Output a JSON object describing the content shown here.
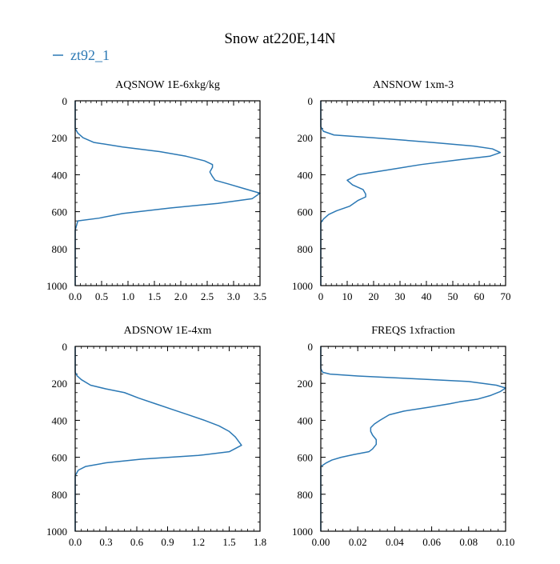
{
  "figure": {
    "title": "Snow at220E,14N",
    "legend_label": "zt92_1",
    "line_color": "#2b78b4"
  },
  "chart_data": [
    {
      "type": "line",
      "title": "AQSNOW  1E-6xkg/kg",
      "xlim": [
        0,
        3.5
      ],
      "ylim": [
        1000,
        0
      ],
      "xticks": [
        0,
        0.5,
        1,
        1.5,
        2,
        2.5,
        3,
        3.5
      ],
      "xtick_labels": [
        "0.0",
        "0.5",
        "1.0",
        "1.5",
        "2.0",
        "2.5",
        "3.0",
        "3.5"
      ],
      "yticks": [
        0,
        200,
        400,
        600,
        800,
        1000
      ],
      "ytick_labels": [
        "0",
        "200",
        "400",
        "600",
        "800",
        "1000"
      ],
      "series": [
        {
          "name": "zt92_1",
          "values": [
            [
              0,
              0
            ],
            [
              0,
              150
            ],
            [
              0.05,
              175
            ],
            [
              0.15,
              200
            ],
            [
              0.35,
              225
            ],
            [
              0.9,
              250
            ],
            [
              1.6,
              275
            ],
            [
              2.1,
              300
            ],
            [
              2.45,
              325
            ],
            [
              2.6,
              345
            ],
            [
              2.6,
              360
            ],
            [
              2.55,
              385
            ],
            [
              2.6,
              410
            ],
            [
              2.65,
              430
            ],
            [
              2.9,
              450
            ],
            [
              3.2,
              475
            ],
            [
              3.5,
              500
            ],
            [
              3.35,
              530
            ],
            [
              2.7,
              555
            ],
            [
              1.8,
              580
            ],
            [
              0.9,
              610
            ],
            [
              0.45,
              635
            ],
            [
              0.05,
              650
            ],
            [
              0,
              700
            ],
            [
              0,
              1000
            ]
          ]
        }
      ]
    },
    {
      "type": "line",
      "title": "ANSNOW  1xm-3",
      "xlim": [
        0,
        70
      ],
      "ylim": [
        1000,
        0
      ],
      "xticks": [
        0,
        10,
        20,
        30,
        40,
        50,
        60,
        70
      ],
      "xtick_labels": [
        "0",
        "10",
        "20",
        "30",
        "40",
        "50",
        "60",
        "70"
      ],
      "yticks": [
        0,
        200,
        400,
        600,
        800,
        1000
      ],
      "ytick_labels": [
        "0",
        "200",
        "400",
        "600",
        "800",
        "1000"
      ],
      "series": [
        {
          "name": "zt92_1",
          "values": [
            [
              0,
              0
            ],
            [
              0,
              140
            ],
            [
              1,
              165
            ],
            [
              5,
              185
            ],
            [
              20,
              200
            ],
            [
              42,
              225
            ],
            [
              58,
              245
            ],
            [
              65,
              260
            ],
            [
              68,
              280
            ],
            [
              64,
              300
            ],
            [
              52,
              320
            ],
            [
              38,
              345
            ],
            [
              25,
              375
            ],
            [
              14,
              400
            ],
            [
              12,
              415
            ],
            [
              10,
              430
            ],
            [
              12,
              455
            ],
            [
              16,
              480
            ],
            [
              17,
              505
            ],
            [
              17,
              520
            ],
            [
              14,
              540
            ],
            [
              11,
              570
            ],
            [
              6,
              595
            ],
            [
              3,
              615
            ],
            [
              1,
              640
            ],
            [
              0,
              660
            ],
            [
              0,
              1000
            ]
          ]
        }
      ]
    },
    {
      "type": "line",
      "title": "ADSNOW  1E-4xm",
      "xlim": [
        0,
        1.8
      ],
      "ylim": [
        1000,
        0
      ],
      "xticks": [
        0,
        0.3,
        0.6,
        0.9,
        1.2,
        1.5,
        1.8
      ],
      "xtick_labels": [
        "0.0",
        "0.3",
        "0.6",
        "0.9",
        "1.2",
        "1.5",
        "1.8"
      ],
      "yticks": [
        0,
        200,
        400,
        600,
        800,
        1000
      ],
      "ytick_labels": [
        "0",
        "200",
        "400",
        "600",
        "800",
        "1000"
      ],
      "series": [
        {
          "name": "zt92_1",
          "values": [
            [
              0,
              0
            ],
            [
              0,
              140
            ],
            [
              0.02,
              160
            ],
            [
              0.06,
              180
            ],
            [
              0.15,
              210
            ],
            [
              0.3,
              230
            ],
            [
              0.48,
              250
            ],
            [
              0.62,
              280
            ],
            [
              0.78,
              310
            ],
            [
              0.94,
              340
            ],
            [
              1.1,
              370
            ],
            [
              1.26,
              400
            ],
            [
              1.4,
              430
            ],
            [
              1.5,
              460
            ],
            [
              1.56,
              490
            ],
            [
              1.62,
              535
            ],
            [
              1.5,
              570
            ],
            [
              1.2,
              590
            ],
            [
              0.65,
              610
            ],
            [
              0.3,
              630
            ],
            [
              0.1,
              650
            ],
            [
              0.03,
              670
            ],
            [
              0,
              700
            ],
            [
              0,
              1000
            ]
          ]
        }
      ]
    },
    {
      "type": "line",
      "title": "FREQS  1xfraction",
      "xlim": [
        0,
        0.1
      ],
      "ylim": [
        1000,
        0
      ],
      "xticks": [
        0,
        0.02,
        0.04,
        0.06,
        0.08,
        0.1
      ],
      "xtick_labels": [
        "0.00",
        "0.02",
        "0.04",
        "0.06",
        "0.08",
        "0.10"
      ],
      "yticks": [
        0,
        200,
        400,
        600,
        800,
        1000
      ],
      "ytick_labels": [
        "0",
        "200",
        "400",
        "600",
        "800",
        "1000"
      ],
      "series": [
        {
          "name": "zt92_1",
          "values": [
            [
              0,
              0
            ],
            [
              0,
              120
            ],
            [
              0.001,
              140
            ],
            [
              0.005,
              150
            ],
            [
              0.02,
              160
            ],
            [
              0.05,
              175
            ],
            [
              0.08,
              190
            ],
            [
              0.095,
              210
            ],
            [
              0.1,
              225
            ],
            [
              0.097,
              245
            ],
            [
              0.092,
              265
            ],
            [
              0.085,
              285
            ],
            [
              0.075,
              300
            ],
            [
              0.07,
              310
            ],
            [
              0.058,
              330
            ],
            [
              0.045,
              350
            ],
            [
              0.037,
              370
            ],
            [
              0.032,
              400
            ],
            [
              0.029,
              420
            ],
            [
              0.027,
              440
            ],
            [
              0.027,
              460
            ],
            [
              0.028,
              480
            ],
            [
              0.03,
              505
            ],
            [
              0.03,
              530
            ],
            [
              0.028,
              555
            ],
            [
              0.026,
              570
            ],
            [
              0.018,
              585
            ],
            [
              0.011,
              600
            ],
            [
              0.006,
              615
            ],
            [
              0.003,
              630
            ],
            [
              0,
              650
            ],
            [
              0,
              1000
            ]
          ]
        }
      ]
    }
  ]
}
